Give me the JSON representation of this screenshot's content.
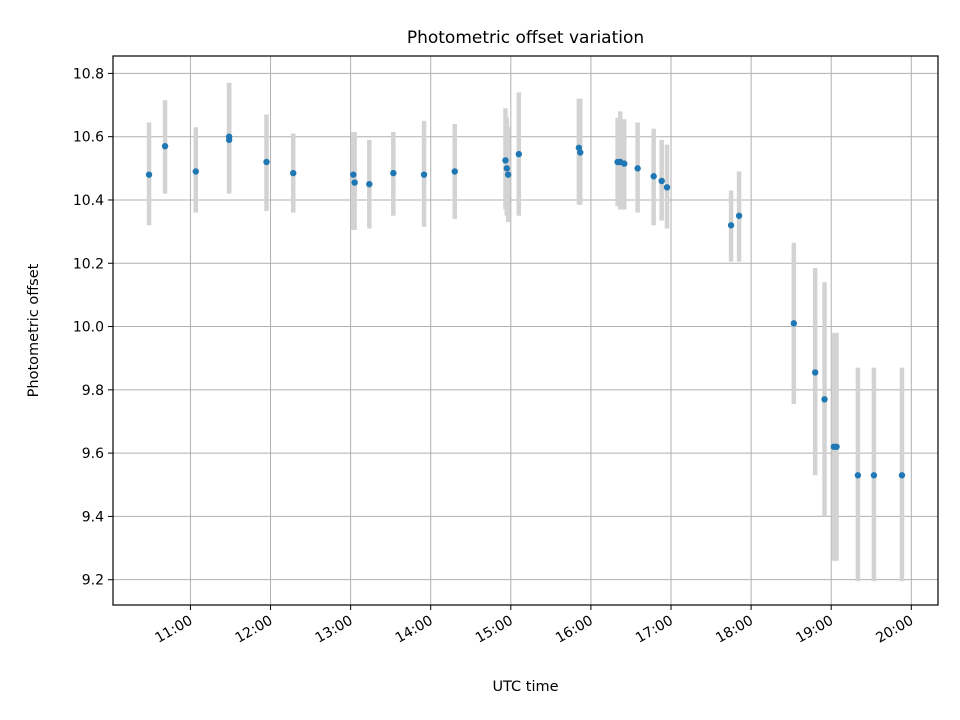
{
  "chart_data": {
    "type": "scatter",
    "title": "Photometric offset variation",
    "xlabel": "UTC time",
    "ylabel": "Photometric offset",
    "x_axis_type": "time",
    "xlim": [
      "10:02",
      "20:20"
    ],
    "ylim": [
      9.12,
      10.855
    ],
    "x_ticks": [
      "11:00",
      "12:00",
      "13:00",
      "14:00",
      "15:00",
      "16:00",
      "17:00",
      "18:00",
      "19:00",
      "20:00"
    ],
    "y_ticks": [
      9.2,
      9.4,
      9.6,
      9.8,
      10.0,
      10.2,
      10.4,
      10.6,
      10.8
    ],
    "y_tick_labels": [
      "9.2",
      "9.4",
      "9.6",
      "9.8",
      "10.0",
      "10.2",
      "10.4",
      "10.6",
      "10.8"
    ],
    "grid": true,
    "point_color": "#1f77b4",
    "errorbar_color": "#d3d3d3",
    "points": [
      {
        "x": "10:29",
        "y": 10.48,
        "ylow": 10.32,
        "yhigh": 10.645
      },
      {
        "x": "10:41",
        "y": 10.57,
        "ylow": 10.42,
        "yhigh": 10.715
      },
      {
        "x": "11:04",
        "y": 10.49,
        "ylow": 10.36,
        "yhigh": 10.63
      },
      {
        "x": "11:29",
        "y": 10.6,
        "ylow": 10.42,
        "yhigh": 10.77
      },
      {
        "x": "11:29",
        "y": 10.59,
        "ylow": 10.42,
        "yhigh": 10.77
      },
      {
        "x": "11:57",
        "y": 10.52,
        "ylow": 10.365,
        "yhigh": 10.67
      },
      {
        "x": "12:17",
        "y": 10.485,
        "ylow": 10.36,
        "yhigh": 10.61
      },
      {
        "x": "13:02",
        "y": 10.48,
        "ylow": 10.305,
        "yhigh": 10.615
      },
      {
        "x": "13:03",
        "y": 10.455,
        "ylow": 10.305,
        "yhigh": 10.615
      },
      {
        "x": "13:14",
        "y": 10.45,
        "ylow": 10.31,
        "yhigh": 10.59
      },
      {
        "x": "13:32",
        "y": 10.485,
        "ylow": 10.35,
        "yhigh": 10.615
      },
      {
        "x": "13:55",
        "y": 10.48,
        "ylow": 10.315,
        "yhigh": 10.65
      },
      {
        "x": "14:18",
        "y": 10.49,
        "ylow": 10.34,
        "yhigh": 10.64
      },
      {
        "x": "14:56",
        "y": 10.525,
        "ylow": 10.37,
        "yhigh": 10.69
      },
      {
        "x": "14:57",
        "y": 10.5,
        "ylow": 10.35,
        "yhigh": 10.66
      },
      {
        "x": "14:58",
        "y": 10.48,
        "ylow": 10.33,
        "yhigh": 10.63
      },
      {
        "x": "15:06",
        "y": 10.545,
        "ylow": 10.35,
        "yhigh": 10.74
      },
      {
        "x": "15:51",
        "y": 10.565,
        "ylow": 10.385,
        "yhigh": 10.72
      },
      {
        "x": "15:52",
        "y": 10.55,
        "ylow": 10.385,
        "yhigh": 10.72
      },
      {
        "x": "16:20",
        "y": 10.52,
        "ylow": 10.38,
        "yhigh": 10.66
      },
      {
        "x": "16:22",
        "y": 10.52,
        "ylow": 10.37,
        "yhigh": 10.68
      },
      {
        "x": "16:25",
        "y": 10.515,
        "ylow": 10.37,
        "yhigh": 10.655
      },
      {
        "x": "16:35",
        "y": 10.5,
        "ylow": 10.36,
        "yhigh": 10.645
      },
      {
        "x": "16:47",
        "y": 10.475,
        "ylow": 10.32,
        "yhigh": 10.625
      },
      {
        "x": "16:53",
        "y": 10.46,
        "ylow": 10.335,
        "yhigh": 10.59
      },
      {
        "x": "16:57",
        "y": 10.44,
        "ylow": 10.31,
        "yhigh": 10.575
      },
      {
        "x": "17:45",
        "y": 10.32,
        "ylow": 10.205,
        "yhigh": 10.43
      },
      {
        "x": "17:51",
        "y": 10.35,
        "ylow": 10.205,
        "yhigh": 10.49
      },
      {
        "x": "18:32",
        "y": 10.01,
        "ylow": 9.755,
        "yhigh": 10.265
      },
      {
        "x": "18:48",
        "y": 9.855,
        "ylow": 9.53,
        "yhigh": 10.185
      },
      {
        "x": "18:55",
        "y": 9.77,
        "ylow": 9.4,
        "yhigh": 10.14
      },
      {
        "x": "19:02",
        "y": 9.62,
        "ylow": 9.26,
        "yhigh": 9.98
      },
      {
        "x": "19:04",
        "y": 9.62,
        "ylow": 9.26,
        "yhigh": 9.98
      },
      {
        "x": "19:20",
        "y": 9.53,
        "ylow": 9.195,
        "yhigh": 9.87
      },
      {
        "x": "19:32",
        "y": 9.53,
        "ylow": 9.195,
        "yhigh": 9.87
      },
      {
        "x": "19:53",
        "y": 9.53,
        "ylow": 9.195,
        "yhigh": 9.87
      }
    ]
  }
}
